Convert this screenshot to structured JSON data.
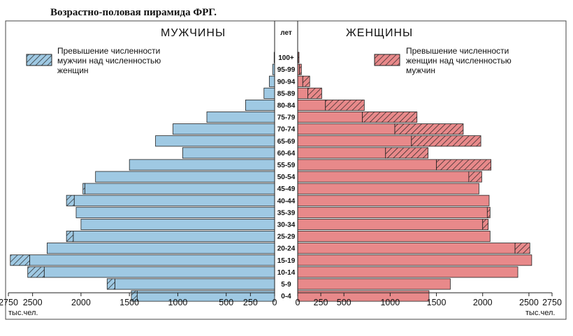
{
  "title": "Возрастно-половая пирамида ФРГ.",
  "chart_data": {
    "type": "bar",
    "subtype": "population-pyramid",
    "left_header": "МУЖЧИНЫ",
    "right_header": "ЖЕНЩИНЫ",
    "age_header": "лет",
    "left_legend": "Превышение численности мужчин над численностью женщин",
    "right_legend": "Превышение численности женщин над численностью мужчин",
    "left_legend_lines": [
      "Превышение численности",
      "мужчин над численностью",
      "женщин"
    ],
    "right_legend_lines": [
      "Превышение численности",
      "женщин над численностью",
      "мужчин"
    ],
    "xlabel_left": "тыс.чел.",
    "xlabel_right": "тыс.чел.",
    "xlim": [
      0,
      2750
    ],
    "left_ticks": [
      2750,
      2500,
      2000,
      1500,
      1000,
      500,
      250,
      0
    ],
    "right_ticks": [
      0,
      250,
      500,
      1000,
      1500,
      2000,
      2500,
      2750
    ],
    "categories": [
      "100+",
      "95-99",
      "90-94",
      "85-89",
      "80-84",
      "75-79",
      "70-74",
      "65-69",
      "60-64",
      "55-59",
      "50-54",
      "45-49",
      "40-44",
      "35-39",
      "30-34",
      "25-29",
      "20-24",
      "15-19",
      "10-14",
      "5-9",
      "0-4"
    ],
    "series": [
      {
        "name": "МУЖЧИНЫ",
        "values": [
          5,
          20,
          55,
          110,
          300,
          700,
          1050,
          1230,
          950,
          1500,
          1850,
          1980,
          2150,
          2050,
          2000,
          2150,
          2350,
          2730,
          2550,
          1730,
          1480
        ]
      },
      {
        "name": "ЖЕНЩИНЫ",
        "values": [
          15,
          40,
          130,
          260,
          720,
          1290,
          1790,
          1980,
          1410,
          2090,
          1990,
          1960,
          2070,
          2080,
          2060,
          2080,
          2510,
          2530,
          2380,
          1650,
          1420
        ]
      }
    ],
    "colors": {
      "male": "#9fc9e3",
      "female": "#e8898a",
      "stroke": "#222222"
    }
  }
}
